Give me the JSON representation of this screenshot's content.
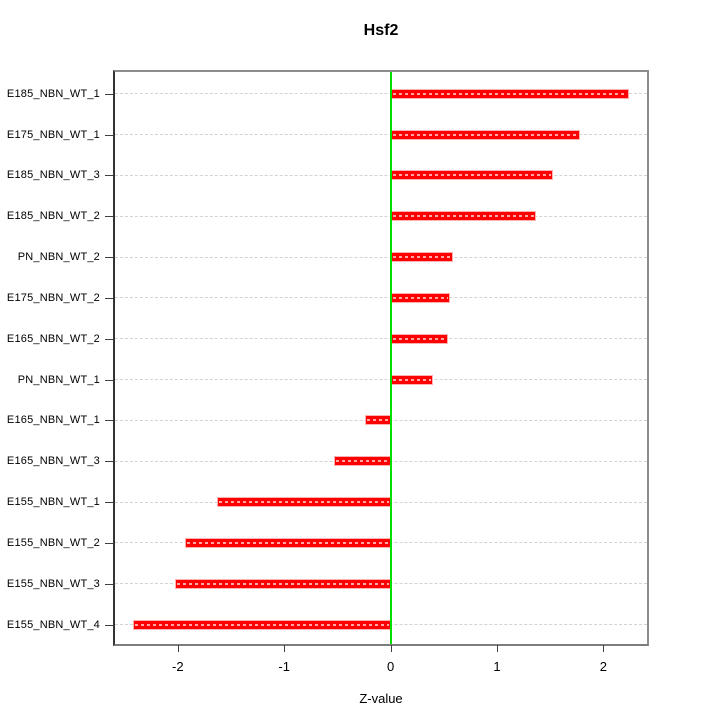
{
  "chart_data": {
    "type": "bar",
    "orientation": "horizontal",
    "title": "Hsf2",
    "xlabel": "Z-value",
    "categories": [
      "E185_NBN_WT_1",
      "E175_NBN_WT_1",
      "E185_NBN_WT_3",
      "E185_NBN_WT_2",
      "PN_NBN_WT_2",
      "E175_NBN_WT_2",
      "E165_NBN_WT_2",
      "PN_NBN_WT_1",
      "E165_NBN_WT_1",
      "E165_NBN_WT_3",
      "E155_NBN_WT_1",
      "E155_NBN_WT_2",
      "E155_NBN_WT_3",
      "E155_NBN_WT_4"
    ],
    "values": [
      2.24,
      1.78,
      1.53,
      1.37,
      0.59,
      0.56,
      0.54,
      0.4,
      -0.24,
      -0.53,
      -1.63,
      -1.93,
      -2.03,
      -2.42
    ],
    "xticks": [
      -2,
      -1,
      0,
      1,
      2
    ],
    "xtick_labels": [
      "-2",
      "-1",
      "0",
      "1",
      "2"
    ],
    "xlim": [
      -2.59,
      2.41
    ],
    "grid": "horizontal dashed line per category",
    "legend": "none",
    "zero_reference_line": 0,
    "colors": {
      "bar": "#ff0000",
      "bar_edge": "#ffafaf",
      "zero_line": "#00e000",
      "grid_line": "#d3d3d3",
      "in_bar_grid": "rgba(255,255,255,0.65)",
      "plot_border": "#8c8c8c",
      "text": "#000000",
      "background": "#ffffff"
    }
  }
}
